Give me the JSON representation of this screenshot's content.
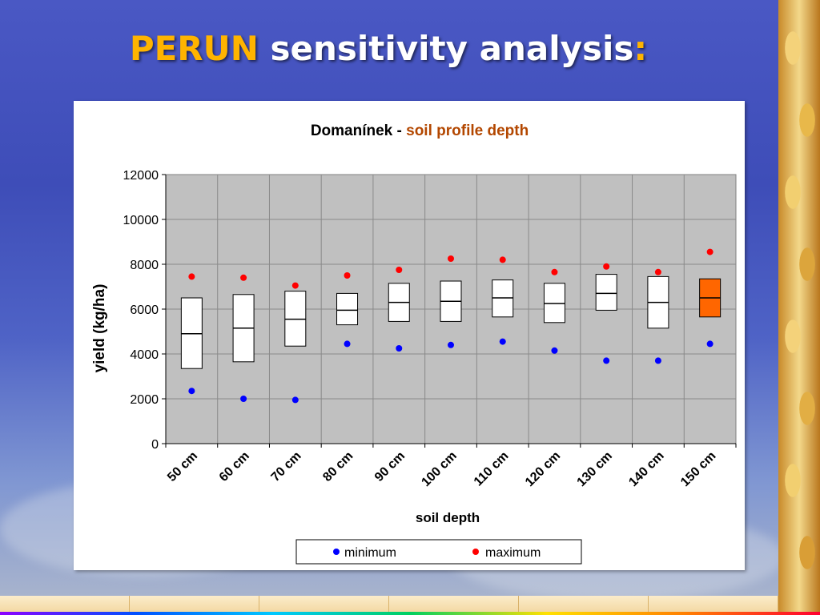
{
  "slide": {
    "title_accent": "PERUN",
    "title_rest": " sensitivity analysis",
    "title_colon": ":"
  },
  "colors": {
    "plot_bg": "#c0c0c0",
    "box_fill": "#ffffff",
    "highlight_box_fill": "#ff6600",
    "minimum_marker": "#0000ff",
    "maximum_marker": "#ff0000",
    "title_location": "#000000",
    "title_variable": "#b34700"
  },
  "chart_data": {
    "type": "box",
    "title_location": "Domanínek - ",
    "title_variable": "soil profile depth",
    "xlabel": "soil depth",
    "ylabel": "yield (kg/ha)",
    "ylim": [
      0,
      12000
    ],
    "yticks": [
      0,
      2000,
      4000,
      6000,
      8000,
      10000,
      12000
    ],
    "grid": true,
    "legend_position": "bottom",
    "categories": [
      "50 cm",
      "60 cm",
      "70 cm",
      "80 cm",
      "90 cm",
      "100 cm",
      "110 cm",
      "120 cm",
      "130 cm",
      "140 cm",
      "150 cm"
    ],
    "boxes": [
      {
        "q1": 3350,
        "median": 4900,
        "q3": 6500
      },
      {
        "q1": 3650,
        "median": 5150,
        "q3": 6650
      },
      {
        "q1": 4350,
        "median": 5550,
        "q3": 6800
      },
      {
        "q1": 5300,
        "median": 5950,
        "q3": 6700
      },
      {
        "q1": 5450,
        "median": 6300,
        "q3": 7150
      },
      {
        "q1": 5450,
        "median": 6350,
        "q3": 7250
      },
      {
        "q1": 5650,
        "median": 6500,
        "q3": 7300
      },
      {
        "q1": 5400,
        "median": 6250,
        "q3": 7150
      },
      {
        "q1": 5950,
        "median": 6700,
        "q3": 7550
      },
      {
        "q1": 5150,
        "median": 6300,
        "q3": 7450
      },
      {
        "q1": 5650,
        "median": 6500,
        "q3": 7350
      }
    ],
    "highlight_index": 10,
    "series": [
      {
        "name": "minimum",
        "values": [
          2350,
          2000,
          1950,
          4450,
          4250,
          4400,
          4550,
          4150,
          3700,
          3700,
          4450
        ]
      },
      {
        "name": "maximum",
        "values": [
          7450,
          7400,
          7050,
          7500,
          7750,
          8250,
          8200,
          7650,
          7900,
          7650,
          8550
        ]
      }
    ]
  }
}
